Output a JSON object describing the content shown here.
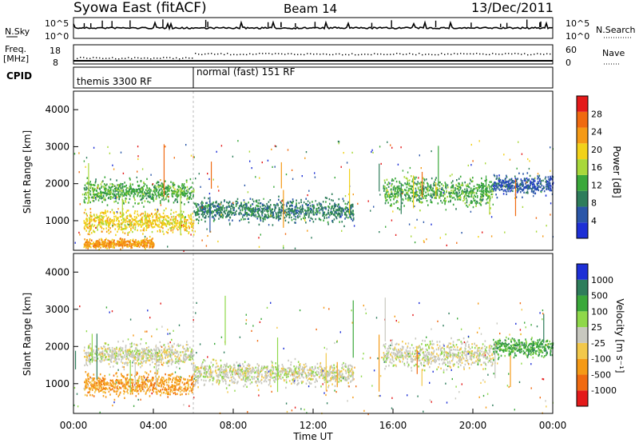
{
  "header": {
    "station": "Syowa East (fitACF)",
    "beam": "Beam 14",
    "date": "13/Dec/2011"
  },
  "noise_panel": {
    "left_label": "N.Sky",
    "right_label": "N.Search",
    "left_ticks": [
      "10^5",
      "10^0"
    ],
    "right_ticks": [
      "10^5",
      "10^0"
    ]
  },
  "freq_panel": {
    "left_label_1": "Freq.",
    "left_label_2": "[MHz]",
    "right_label": "Nave",
    "left_ticks": [
      "18",
      "8"
    ],
    "right_ticks": [
      "60",
      "0"
    ]
  },
  "cpid_panel": {
    "label": "CPID",
    "modes": [
      {
        "name": "themis 3300 RF",
        "start_hour": 0,
        "end_hour": 6
      },
      {
        "name": "normal (fast) 151 RF",
        "start_hour": 6,
        "end_hour": 24
      }
    ]
  },
  "colors": {
    "power_scale": [
      "#1d2fd6",
      "#2a56a8",
      "#2e7d5b",
      "#3aa83a",
      "#a8d83a",
      "#f2d21a",
      "#f59a16",
      "#f06a10",
      "#e41a1a"
    ],
    "velocity_scale": [
      "#e41a1a",
      "#f06a10",
      "#f59a16",
      "#f2c84a",
      "#c8c8bf",
      "#8fd84a",
      "#3aa83a",
      "#2e7d5b",
      "#1d2fd6"
    ]
  },
  "chart_data": [
    {
      "type": "heatmap",
      "title": "",
      "xlabel": "Time UT",
      "ylabel": "Slant Range [km]",
      "colorbar_label": "Power [dB]",
      "colorbar_ticks": [
        "4",
        "8",
        "12",
        "16",
        "20",
        "24",
        "28"
      ],
      "xlim": [
        0,
        24
      ],
      "ylim": [
        200,
        4500
      ],
      "x_ticks": [
        "00:00",
        "04:00",
        "08:00",
        "12:00",
        "16:00",
        "20:00",
        "00:00"
      ],
      "y_ticks": [
        "1000",
        "2000",
        "3000",
        "4000"
      ],
      "scatter_bands": [
        {
          "t_start": 0.5,
          "t_end": 6.0,
          "range_center": 1800,
          "range_width": 500,
          "level": 3
        },
        {
          "t_start": 0.5,
          "t_end": 6.0,
          "range_center": 1000,
          "range_width": 500,
          "level": 5
        },
        {
          "t_start": 0.5,
          "t_end": 4.0,
          "range_center": 400,
          "range_width": 200,
          "level": 6
        },
        {
          "t_start": 6.0,
          "t_end": 14.0,
          "range_center": 1300,
          "range_width": 500,
          "level": 2
        },
        {
          "t_start": 15.5,
          "t_end": 21.0,
          "range_center": 1800,
          "range_width": 600,
          "level": 3
        },
        {
          "t_start": 21.0,
          "t_end": 24.0,
          "range_center": 2000,
          "range_width": 400,
          "level": 1
        }
      ]
    },
    {
      "type": "heatmap",
      "title": "",
      "xlabel": "Time UT",
      "ylabel": "Slant Range [km]",
      "colorbar_label": "Velocity [m s⁻¹]",
      "colorbar_ticks": [
        "-1000",
        "-500",
        "-100",
        "-25",
        "25",
        "100",
        "500",
        "1000"
      ],
      "xlim": [
        0,
        24
      ],
      "ylim": [
        200,
        4500
      ],
      "x_ticks": [
        "00:00",
        "04:00",
        "08:00",
        "12:00",
        "16:00",
        "20:00",
        "00:00"
      ],
      "y_ticks": [
        "1000",
        "2000",
        "3000",
        "4000"
      ],
      "scatter_bands": [
        {
          "t_start": 0.5,
          "t_end": 6.0,
          "range_center": 1800,
          "range_width": 500,
          "level": 4
        },
        {
          "t_start": 0.5,
          "t_end": 6.0,
          "range_center": 1000,
          "range_width": 500,
          "level": 2
        },
        {
          "t_start": 6.0,
          "t_end": 14.0,
          "range_center": 1300,
          "range_width": 500,
          "level": 4
        },
        {
          "t_start": 15.5,
          "t_end": 21.0,
          "range_center": 1800,
          "range_width": 600,
          "level": 4
        },
        {
          "t_start": 21.0,
          "t_end": 24.0,
          "range_center": 2000,
          "range_width": 400,
          "level": 6
        }
      ]
    }
  ]
}
